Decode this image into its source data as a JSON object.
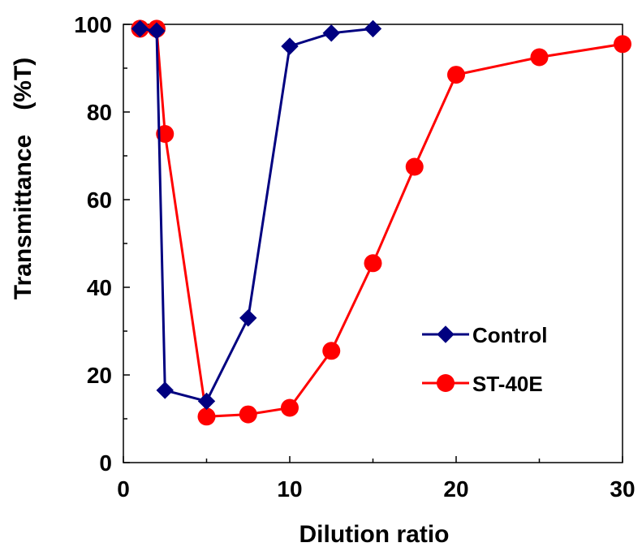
{
  "chart_data": {
    "type": "line",
    "xlabel": "Dilution ratio",
    "ylabel": "Transmittance　(%T)",
    "xlim": [
      0,
      30
    ],
    "ylim": [
      0,
      100
    ],
    "x_ticks": [
      0,
      10,
      20,
      30
    ],
    "y_ticks": [
      0,
      20,
      40,
      60,
      80,
      100
    ],
    "grid": false,
    "legend_position": "bottom-right",
    "series": [
      {
        "name": "Control",
        "color": "#000080",
        "marker": "diamond",
        "x": [
          1,
          2,
          2.5,
          5,
          7.5,
          10,
          12.5,
          15
        ],
        "y": [
          99,
          98.5,
          16.5,
          14,
          33,
          95,
          98,
          99
        ]
      },
      {
        "name": "ST-40E",
        "color": "#ff0000",
        "marker": "circle",
        "x": [
          1,
          2,
          2.5,
          5,
          7.5,
          10,
          12.5,
          15,
          17.5,
          20,
          25,
          30
        ],
        "y": [
          99,
          99,
          75,
          10.5,
          11,
          12.5,
          25.5,
          45.5,
          67.5,
          88.5,
          92.5,
          95.5
        ]
      }
    ]
  }
}
